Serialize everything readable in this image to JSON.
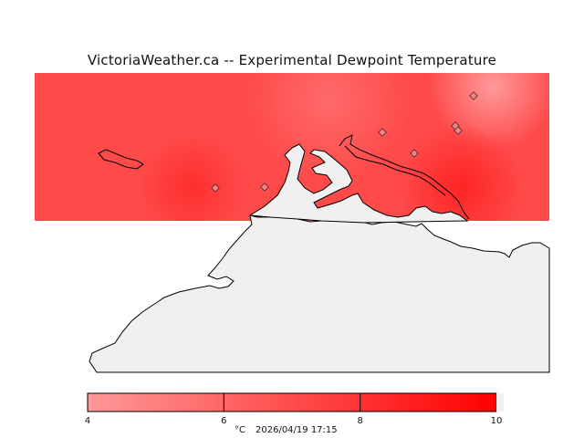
{
  "title": "VictoriaWeather.ca -- Experimental Dewpoint Temperature",
  "colors": {
    "scale_min": "#ff9999",
    "scale_max": "#ff0000",
    "field_base": "#ff4a4a",
    "land": "#f0f0f0",
    "coast": "#000000"
  },
  "legend": {
    "ticks": [
      "4",
      "6",
      "8",
      "10"
    ],
    "unit": "°C",
    "timestamp": "2026/04/19 17:15"
  }
}
